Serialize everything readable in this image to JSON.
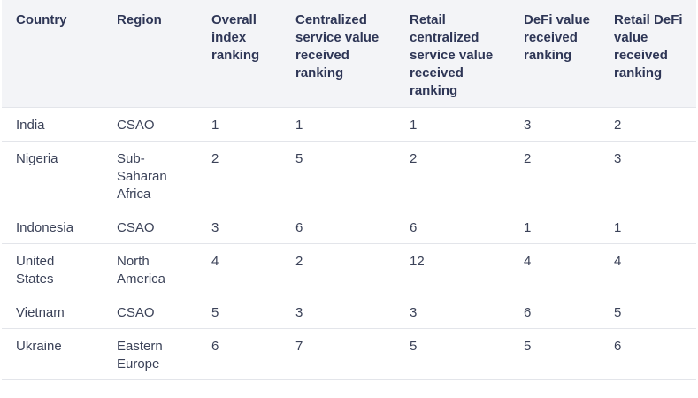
{
  "table": {
    "headers": [
      "Country",
      "Region",
      "Overall index ranking",
      "Centralized service value received ranking",
      "Retail centralized service value received ranking",
      "DeFi value received ranking",
      "Retail DeFi value received ranking"
    ],
    "rows": [
      [
        "India",
        "CSAO",
        "1",
        "1",
        "1",
        "3",
        "2"
      ],
      [
        "Nigeria",
        "Sub-Saharan Africa",
        "2",
        "5",
        "2",
        "2",
        "3"
      ],
      [
        "Indonesia",
        "CSAO",
        "3",
        "6",
        "6",
        "1",
        "1"
      ],
      [
        "United States",
        "North America",
        "4",
        "2",
        "12",
        "4",
        "4"
      ],
      [
        "Vietnam",
        "CSAO",
        "5",
        "3",
        "3",
        "6",
        "5"
      ],
      [
        "Ukraine",
        "Eastern Europe",
        "6",
        "7",
        "5",
        "5",
        "6"
      ]
    ]
  }
}
